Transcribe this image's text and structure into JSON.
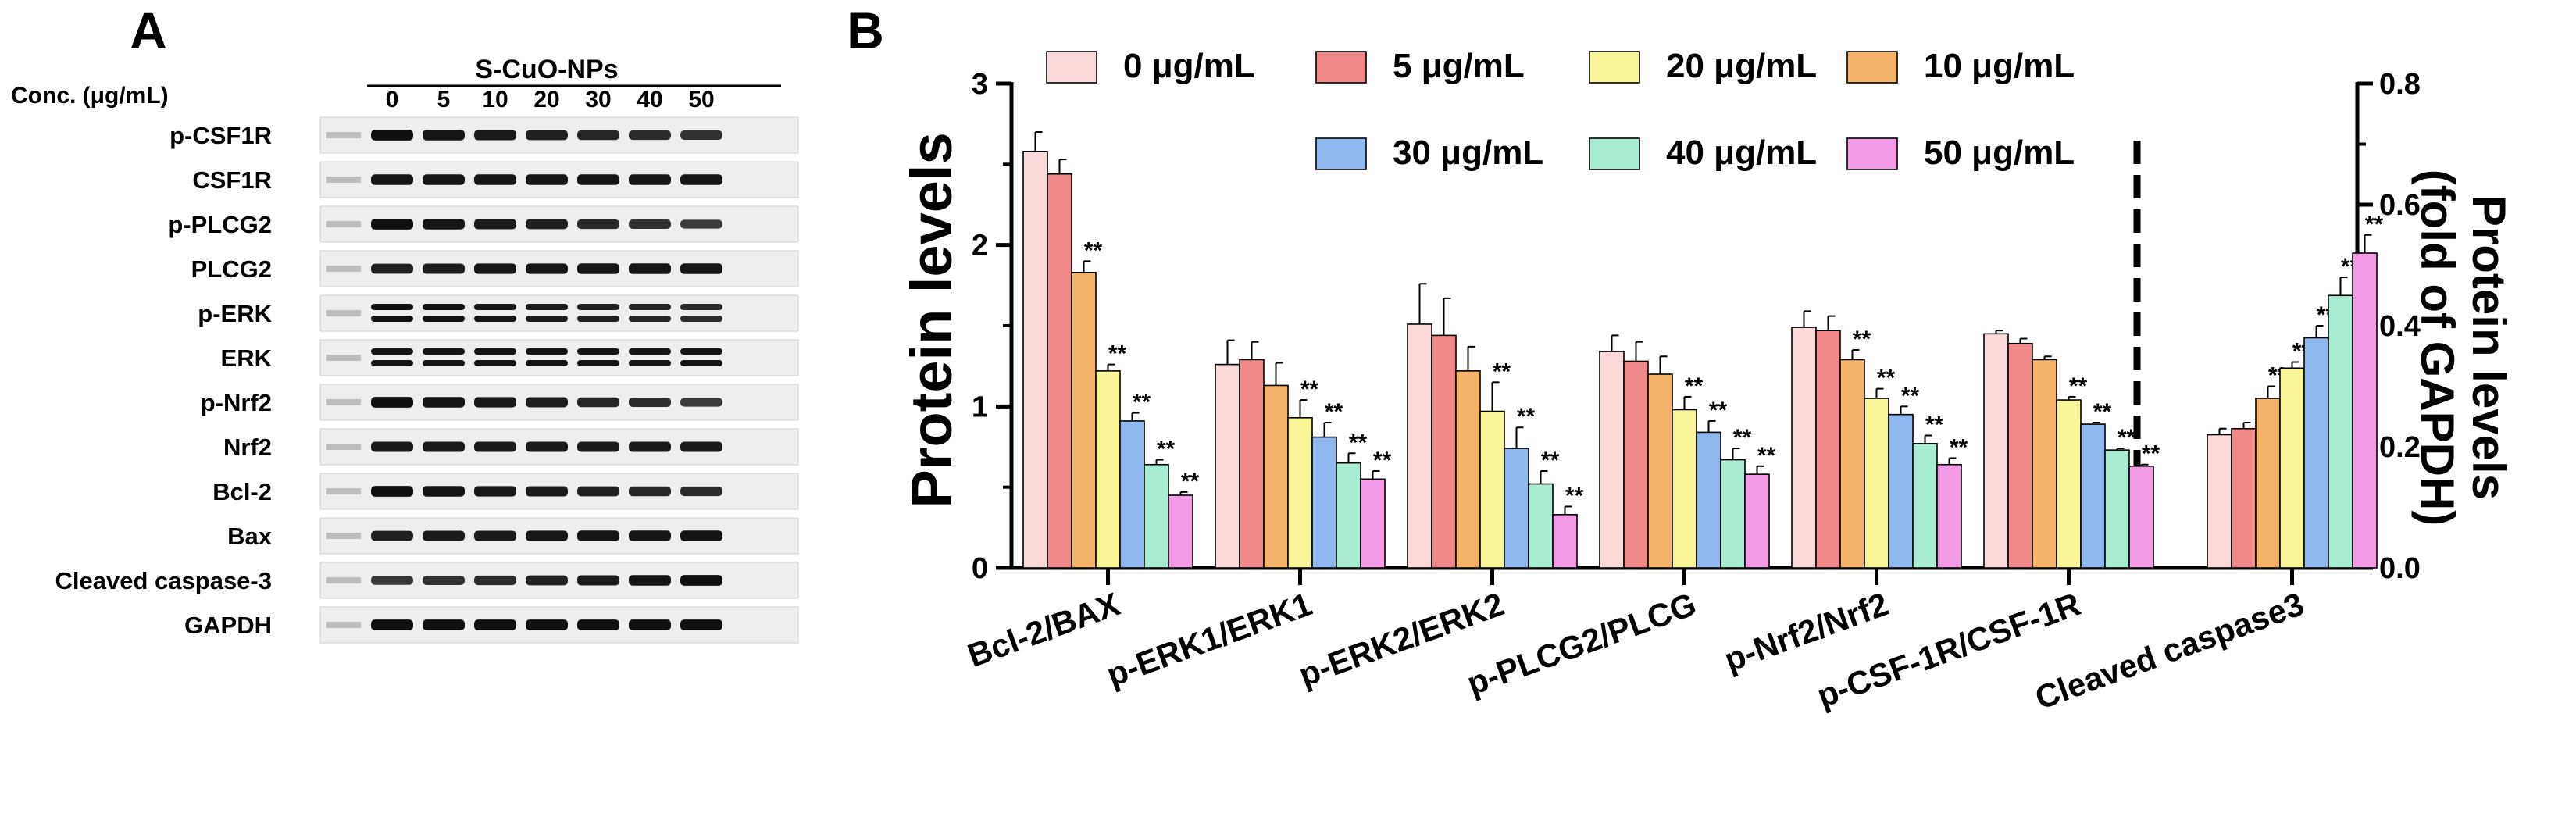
{
  "panel_a": {
    "label": "A",
    "conc_label": "Conc. (μg/mL)",
    "treatment_label": "S-CuO-NPs",
    "concentrations": [
      "0",
      "5",
      "10",
      "20",
      "30",
      "40",
      "50"
    ],
    "blot_rows": [
      {
        "name": "p-CSF1R",
        "bands": 1,
        "intensity": [
          0.95,
          0.9,
          0.85,
          0.8,
          0.75,
          0.7,
          0.65
        ]
      },
      {
        "name": "CSF1R",
        "bands": 1,
        "intensity": [
          0.9,
          0.9,
          0.9,
          0.9,
          0.9,
          0.9,
          0.9
        ]
      },
      {
        "name": "p-PLCG2",
        "bands": 1,
        "intensity": [
          0.95,
          0.9,
          0.85,
          0.8,
          0.72,
          0.65,
          0.55
        ]
      },
      {
        "name": "PLCG2",
        "bands": 1,
        "intensity": [
          0.8,
          0.85,
          0.88,
          0.88,
          0.9,
          0.9,
          0.9
        ]
      },
      {
        "name": "p-ERK",
        "bands": 2,
        "intensity": [
          0.95,
          0.92,
          0.9,
          0.85,
          0.8,
          0.75,
          0.7
        ]
      },
      {
        "name": "ERK",
        "bands": 2,
        "intensity": [
          0.9,
          0.9,
          0.9,
          0.9,
          0.9,
          0.9,
          0.9
        ]
      },
      {
        "name": "p-Nrf2",
        "bands": 1,
        "intensity": [
          0.95,
          0.9,
          0.88,
          0.82,
          0.75,
          0.68,
          0.55
        ]
      },
      {
        "name": "Nrf2",
        "bands": 1,
        "intensity": [
          0.85,
          0.85,
          0.85,
          0.85,
          0.85,
          0.85,
          0.85
        ]
      },
      {
        "name": "Bcl-2",
        "bands": 1,
        "intensity": [
          0.95,
          0.92,
          0.88,
          0.85,
          0.8,
          0.75,
          0.7
        ]
      },
      {
        "name": "Bax",
        "bands": 1,
        "intensity": [
          0.8,
          0.85,
          0.85,
          0.88,
          0.9,
          0.9,
          0.92
        ]
      },
      {
        "name": "Cleaved caspase-3",
        "bands": 1,
        "intensity": [
          0.6,
          0.65,
          0.7,
          0.78,
          0.85,
          0.9,
          0.95
        ]
      },
      {
        "name": "GAPDH",
        "bands": 1,
        "intensity": [
          0.95,
          0.95,
          0.95,
          0.95,
          0.95,
          0.95,
          0.95
        ]
      }
    ]
  },
  "panel_b": {
    "label": "B",
    "colors": {
      "0 μg/mL": "#fbd9d9",
      "5 μg/mL": "#f08a8a",
      "10 μg/mL": "#f5b269",
      "20 μg/mL": "#fbf59a",
      "30 μg/mL": "#8fb8ee",
      "40 μg/mL": "#a8ecd2",
      "50 μg/mL": "#f39ae6"
    },
    "sig_mark": "**",
    "legend": {
      "row1": [
        "0 μg/mL",
        "5 μg/mL",
        "20 μg/mL",
        "10 μg/mL"
      ],
      "row2": [
        "30 μg/mL",
        "40 μg/mL",
        "50 μg/mL"
      ]
    }
  },
  "chart_data": {
    "type": "bar",
    "title": "",
    "ylabel": "Protein levels",
    "y2label_line1": "Protein levels",
    "y2label_line2": "(fold of GAPDH)",
    "ylim": [
      0,
      3
    ],
    "yticks": [
      "0",
      "1",
      "2",
      "3"
    ],
    "y2lim": [
      0,
      0.8
    ],
    "y2ticks": [
      "0.0",
      "0.2",
      "0.4",
      "0.6",
      "0.8"
    ],
    "series_order": [
      "0 μg/mL",
      "5 μg/mL",
      "10 μg/mL",
      "20 μg/mL",
      "30 μg/mL",
      "40 μg/mL",
      "50 μg/mL"
    ],
    "groups": [
      {
        "category": "Bcl-2/BAX",
        "axis": "left",
        "values": [
          2.58,
          2.44,
          1.83,
          1.22,
          0.91,
          0.64,
          0.45
        ],
        "errors": [
          0.12,
          0.09,
          0.07,
          0.04,
          0.05,
          0.03,
          0.02
        ],
        "sig": [
          false,
          false,
          true,
          true,
          true,
          true,
          true
        ]
      },
      {
        "category": "p-ERK1/ERK1",
        "axis": "left",
        "values": [
          1.26,
          1.29,
          1.13,
          0.93,
          0.81,
          0.65,
          0.55
        ],
        "errors": [
          0.15,
          0.11,
          0.14,
          0.11,
          0.09,
          0.06,
          0.05
        ],
        "sig": [
          false,
          false,
          false,
          true,
          true,
          true,
          true
        ]
      },
      {
        "category": "p-ERK2/ERK2",
        "axis": "left",
        "values": [
          1.51,
          1.44,
          1.22,
          0.97,
          0.74,
          0.52,
          0.33
        ],
        "errors": [
          0.25,
          0.23,
          0.15,
          0.18,
          0.13,
          0.08,
          0.05
        ],
        "sig": [
          false,
          false,
          false,
          true,
          true,
          true,
          true
        ]
      },
      {
        "category": "p-PLCG2/PLCG",
        "axis": "left",
        "values": [
          1.34,
          1.28,
          1.2,
          0.98,
          0.84,
          0.67,
          0.58
        ],
        "errors": [
          0.1,
          0.12,
          0.11,
          0.08,
          0.07,
          0.07,
          0.05
        ],
        "sig": [
          false,
          false,
          false,
          true,
          true,
          true,
          true
        ]
      },
      {
        "category": "p-Nrf2/Nrf2",
        "axis": "left",
        "values": [
          1.49,
          1.47,
          1.29,
          1.05,
          0.95,
          0.77,
          0.64
        ],
        "errors": [
          0.1,
          0.09,
          0.06,
          0.06,
          0.05,
          0.05,
          0.04
        ],
        "sig": [
          false,
          false,
          true,
          true,
          true,
          true,
          true
        ]
      },
      {
        "category": "p-CSF-1R/CSF-1R",
        "axis": "left",
        "values": [
          1.45,
          1.39,
          1.29,
          1.04,
          0.89,
          0.73,
          0.63
        ],
        "errors": [
          0.02,
          0.03,
          0.02,
          0.02,
          0.01,
          0.01,
          0.01
        ],
        "sig": [
          false,
          false,
          false,
          true,
          true,
          true,
          true
        ]
      },
      {
        "category": "Cleaved caspase3",
        "axis": "right",
        "values": [
          0.22,
          0.23,
          0.28,
          0.33,
          0.38,
          0.45,
          0.52
        ],
        "errors": [
          0.01,
          0.01,
          0.02,
          0.01,
          0.02,
          0.03,
          0.03
        ],
        "sig": [
          false,
          false,
          true,
          true,
          true,
          true,
          true
        ]
      }
    ]
  }
}
